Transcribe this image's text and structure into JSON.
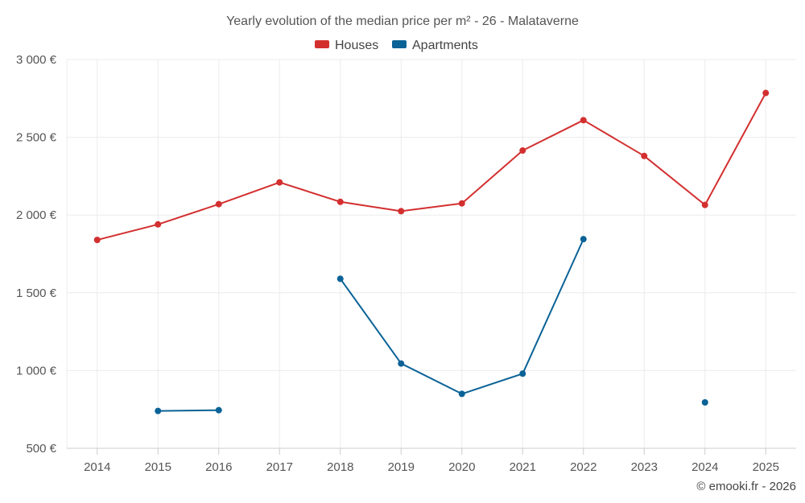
{
  "chart_data": {
    "type": "line",
    "title": "Yearly evolution of the median price per m² - 26 - Malataverne",
    "categories": [
      "2014",
      "2015",
      "2016",
      "2017",
      "2018",
      "2019",
      "2020",
      "2021",
      "2022",
      "2023",
      "2024",
      "2025"
    ],
    "series": [
      {
        "name": "Houses",
        "color": "#d32f2f",
        "values": [
          1840,
          1940,
          2070,
          2210,
          2085,
          2025,
          2075,
          2415,
          2610,
          2380,
          2065,
          2785
        ]
      },
      {
        "name": "Apartments",
        "color": "#0a6296",
        "values": [
          null,
          740,
          745,
          null,
          1590,
          1045,
          850,
          980,
          1845,
          null,
          795,
          null
        ]
      }
    ],
    "ylim": [
      500,
      3000
    ],
    "yticks": [
      500,
      1000,
      1500,
      2000,
      2500,
      3000
    ],
    "ytick_labels": [
      "500 €",
      "1 000 €",
      "1 500 €",
      "2 000 €",
      "2 500 €",
      "3 000 €"
    ],
    "xlabel": "",
    "ylabel": "",
    "legend_position": "top-center",
    "grid": true
  },
  "credit": "© emooki.fr - 2026"
}
